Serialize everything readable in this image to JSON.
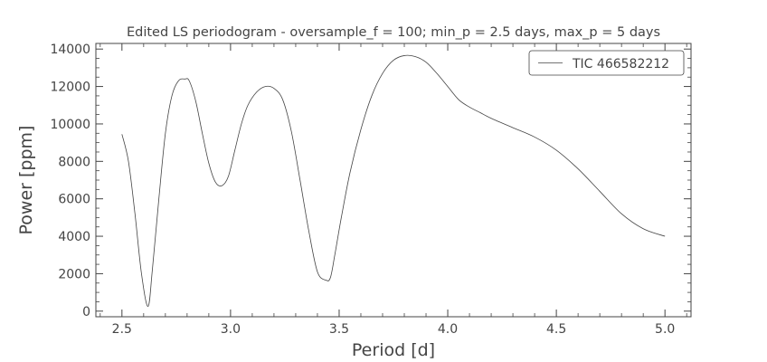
{
  "chart_data": {
    "type": "line",
    "title": "Edited LS periodogram - oversample_f = 100; min_p = 2.5 days, max_p = 5 days",
    "xlabel": "Period [d]",
    "ylabel": "Power [ppm]",
    "xlim": [
      2.38,
      5.12
    ],
    "ylim": [
      -300,
      14300
    ],
    "xticks": [
      2.5,
      3.0,
      3.5,
      4.0,
      4.5,
      5.0
    ],
    "xtick_labels": [
      "2.5",
      "3.0",
      "3.5",
      "4.0",
      "4.5",
      "5.0"
    ],
    "yticks": [
      0,
      2000,
      4000,
      6000,
      8000,
      10000,
      12000,
      14000
    ],
    "ytick_labels": [
      "0",
      "2000",
      "4000",
      "6000",
      "8000",
      "10000",
      "12000",
      "14000"
    ],
    "grid": false,
    "legend_position": "top-right",
    "series": [
      {
        "name": "TIC 466582212",
        "color": "#444444",
        "x": [
          2.5,
          2.53,
          2.56,
          2.59,
          2.62,
          2.64,
          2.67,
          2.7,
          2.73,
          2.76,
          2.79,
          2.81,
          2.84,
          2.87,
          2.9,
          2.93,
          2.96,
          2.99,
          3.02,
          3.05,
          3.08,
          3.12,
          3.16,
          3.2,
          3.24,
          3.28,
          3.32,
          3.36,
          3.4,
          3.44,
          3.46,
          3.48,
          3.51,
          3.55,
          3.6,
          3.65,
          3.7,
          3.75,
          3.8,
          3.85,
          3.9,
          3.95,
          4.0,
          4.05,
          4.1,
          4.15,
          4.2,
          4.3,
          4.4,
          4.5,
          4.6,
          4.7,
          4.8,
          4.9,
          5.0
        ],
        "y": [
          9450,
          8000,
          5200,
          2000,
          250,
          2200,
          6000,
          9500,
          11500,
          12300,
          12400,
          12300,
          11200,
          9500,
          7900,
          6900,
          6700,
          7200,
          8600,
          10000,
          11000,
          11700,
          12000,
          11900,
          11300,
          9600,
          7000,
          4300,
          2100,
          1650,
          1800,
          3000,
          5000,
          7400,
          9700,
          11500,
          12700,
          13400,
          13650,
          13600,
          13300,
          12700,
          12000,
          11300,
          10900,
          10600,
          10300,
          9800,
          9300,
          8600,
          7600,
          6400,
          5200,
          4400,
          4000
        ]
      }
    ]
  }
}
